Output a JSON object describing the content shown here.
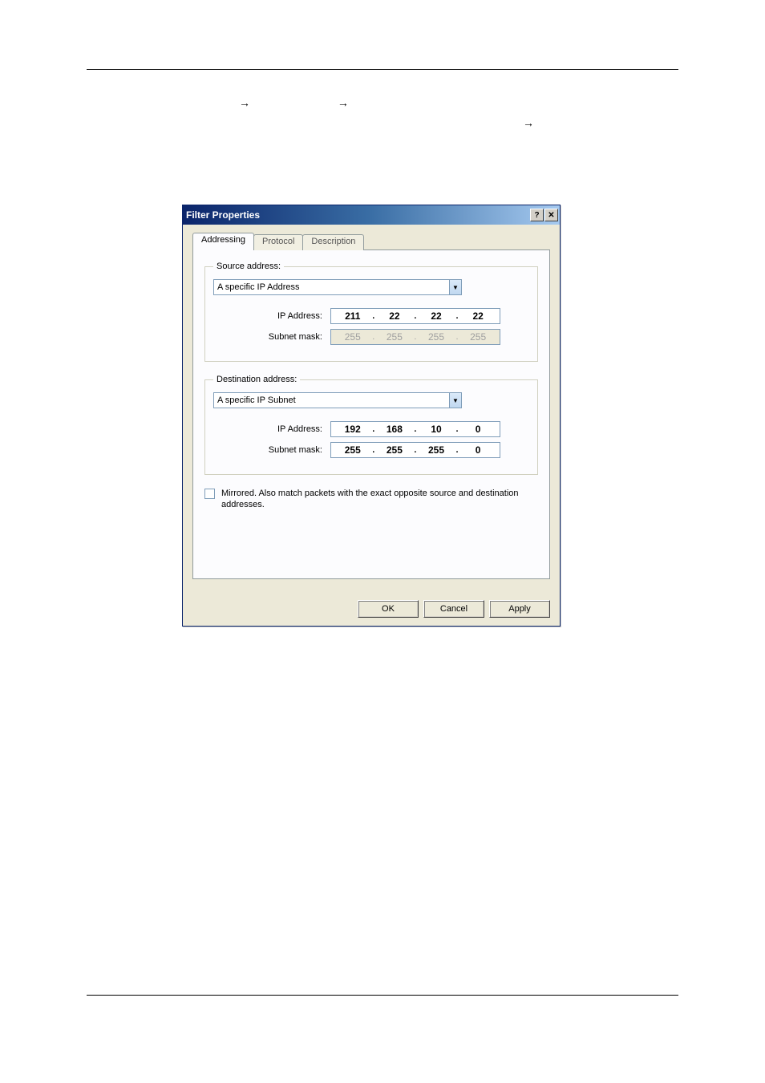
{
  "intro": {
    "line1_prefix_arrow_present": true,
    "line1_mid": "                ",
    "arrow_glyph": "→"
  },
  "dialog": {
    "title": "Filter Properties",
    "tabs": {
      "addressing": "Addressing",
      "protocol": "Protocol",
      "description": "Description"
    },
    "source": {
      "legend": "Source address:",
      "combo": "A specific IP Address",
      "ip_label": "IP Address:",
      "ip": [
        "211",
        "22",
        "22",
        "22"
      ],
      "mask_label": "Subnet mask:",
      "mask": [
        "255",
        "255",
        "255",
        "255"
      ],
      "mask_disabled": true
    },
    "dest": {
      "legend": "Destination address:",
      "combo": "A specific IP Subnet",
      "ip_label": "IP Address:",
      "ip": [
        "192",
        "168",
        "10",
        "0"
      ],
      "mask_label": "Subnet mask:",
      "mask": [
        "255",
        "255",
        "255",
        "0"
      ],
      "mask_disabled": false
    },
    "mirror_text": "Mirrored. Also match packets with the exact opposite source and destination addresses.",
    "buttons": {
      "ok": "OK",
      "cancel": "Cancel",
      "apply": "Apply"
    }
  }
}
